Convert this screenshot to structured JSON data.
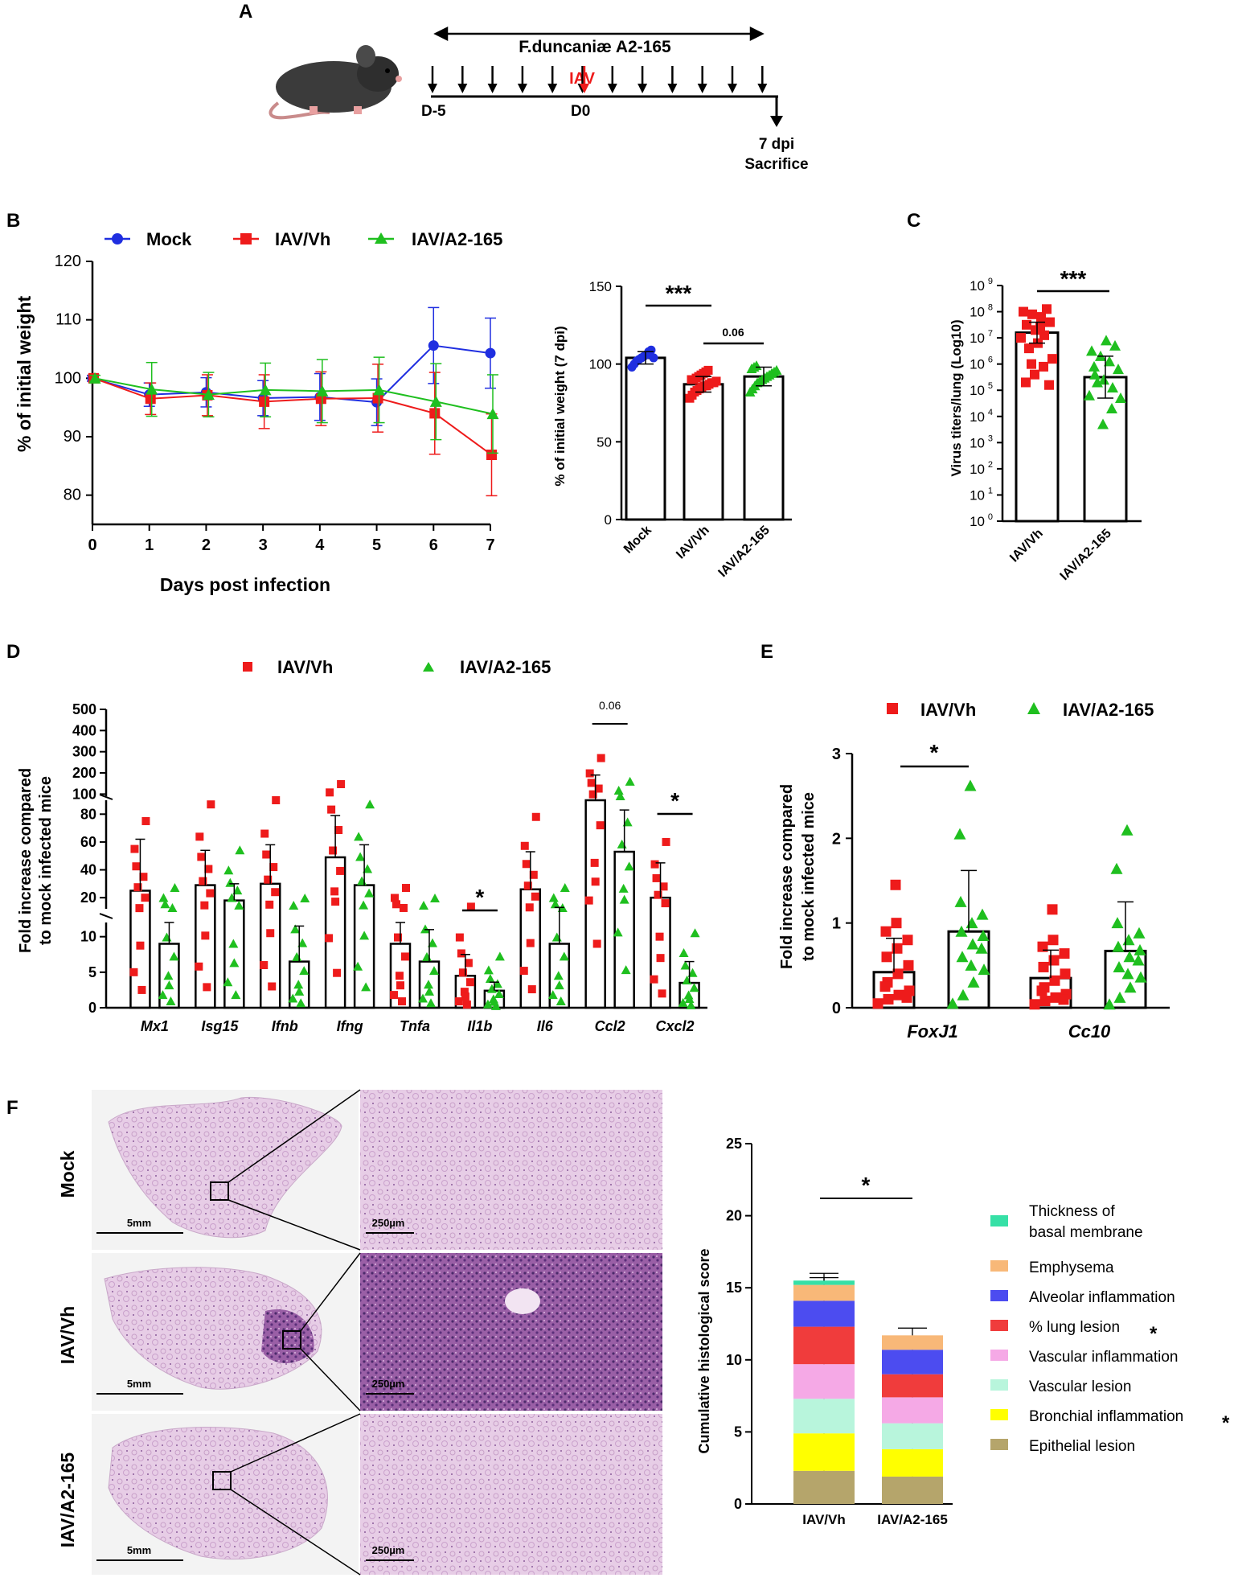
{
  "panels": {
    "A": "A",
    "B": "B",
    "C": "C",
    "D": "D",
    "E": "E",
    "F": "F"
  },
  "colors": {
    "mock": "#1f2ee0",
    "vh": "#ee1b1b",
    "a2": "#1fbf1f"
  },
  "timeline": {
    "treatment": "F.duncaniæ A2-165",
    "infection": "IAV",
    "start": "D-5",
    "zero": "D0",
    "end1": "7 dpi",
    "end2": "Sacrifice"
  },
  "legend_main": {
    "mock": "Mock",
    "vh": "IAV/Vh",
    "a2": "IAV/A2-165"
  },
  "chart_data": [
    {
      "id": "B_weight_curve",
      "type": "line",
      "xlabel": "Days post infection",
      "ylabel": "% of initial weight",
      "x": [
        0,
        1,
        2,
        3,
        4,
        5,
        6,
        7
      ],
      "xticks": [
        "0",
        "1",
        "2",
        "3",
        "4",
        "5",
        "6",
        "7"
      ],
      "ylim": [
        75,
        120
      ],
      "yticks": [
        "80",
        "90",
        "100",
        "110",
        "120"
      ],
      "series": [
        {
          "name": "Mock",
          "values": [
            100,
            97.2,
            97.6,
            96.6,
            96.8,
            95.9,
            105.6,
            104.3
          ],
          "err": [
            0.5,
            2.0,
            2.5,
            3.0,
            4.0,
            4.0,
            6.5,
            6.0
          ]
        },
        {
          "name": "IAV/Vh",
          "values": [
            100,
            96.5,
            97.1,
            96.0,
            96.5,
            96.6,
            94.0,
            86.9
          ],
          "err": [
            0.6,
            2.7,
            3.5,
            4.6,
            4.6,
            5.8,
            7.0,
            7.0
          ]
        },
        {
          "name": "IAV/A2-165",
          "values": [
            100,
            98.1,
            97.2,
            98.0,
            97.8,
            98.0,
            96.0,
            93.9
          ],
          "err": [
            0.5,
            4.6,
            3.8,
            4.6,
            5.4,
            5.6,
            6.5,
            6.7
          ]
        }
      ]
    },
    {
      "id": "B_weight_7dpi",
      "type": "bar",
      "ylabel": "% of initial weight (7 dpi)",
      "categories": [
        "Mock",
        "IAV/Vh",
        "IAV/A2-165"
      ],
      "values": [
        104,
        87,
        92
      ],
      "err": [
        4,
        5,
        6
      ],
      "ylim": [
        0,
        150
      ],
      "yticks": [
        "0",
        "50",
        "100",
        "150"
      ],
      "points": [
        [
          98,
          100,
          102,
          103,
          104,
          105,
          106,
          108,
          109,
          104
        ],
        [
          78,
          80,
          82,
          83,
          84,
          85,
          86,
          86,
          87,
          88,
          88,
          89,
          90,
          90,
          91,
          92,
          93,
          94,
          95,
          96
        ],
        [
          82,
          84,
          86,
          88,
          89,
          90,
          91,
          92,
          93,
          94,
          95,
          96,
          97,
          98,
          99
        ]
      ],
      "annotations": [
        "***",
        "0.06"
      ]
    },
    {
      "id": "C_virus_titers",
      "type": "bar",
      "ylabel": "Virus titers/lung (Log10)",
      "categories": [
        "IAV/Vh",
        "IAV/A2-165"
      ],
      "log_values": [
        7.2,
        5.5
      ],
      "log_err": [
        0.4,
        0.8
      ],
      "ylim_log": [
        0,
        9
      ],
      "yticks": [
        "10",
        "10",
        "10",
        "10",
        "10",
        "10",
        "10",
        "10",
        "10",
        "10"
      ],
      "yticks_exp": [
        "0",
        "1",
        "2",
        "3",
        "4",
        "5",
        "6",
        "7",
        "8",
        "9"
      ],
      "points": [
        [
          7.0,
          7.1,
          7.3,
          7.5,
          7.6,
          7.8,
          7.9,
          8.0,
          8.1,
          6.8,
          6.6,
          6.2,
          5.9,
          5.6,
          5.3,
          5.2,
          7.4,
          6.0
        ],
        [
          4.8,
          5.1,
          5.4,
          5.6,
          5.8,
          6.1,
          6.3,
          6.5,
          6.7,
          6.9,
          5.3,
          4.7,
          4.3,
          3.7,
          5.9
        ]
      ],
      "annotations": [
        "***"
      ]
    },
    {
      "id": "D_cytokines",
      "type": "bar",
      "ylabel": "Fold increase compared to mock infected mice",
      "categories": [
        "Mx1",
        "Isg15",
        "Ifnb",
        "Ifng",
        "Tnfa",
        "Il1b",
        "Il6",
        "Ccl2",
        "Cxcl2"
      ],
      "yticks_low": [
        "0",
        "5",
        "10"
      ],
      "yticks_mid": [
        "20",
        "40",
        "60",
        "80"
      ],
      "yticks_high": [
        "100",
        "200",
        "300",
        "400",
        "500"
      ],
      "series": [
        {
          "name": "IAV/Vh",
          "values": [
            25,
            29,
            30,
            49,
            9,
            4.5,
            26,
            90,
            20
          ],
          "err": [
            37,
            25,
            28,
            30,
            3,
            3,
            27,
            100,
            25
          ]
        },
        {
          "name": "IAV/A2-165",
          "values": [
            9,
            18,
            6.5,
            29,
            6.5,
            2.4,
            9,
            53,
            3.5
          ],
          "err": [
            3,
            12,
            5,
            29,
            4.5,
            1.2,
            4,
            30,
            3
          ]
        }
      ],
      "annotations": [
        "0.06",
        "*",
        "*"
      ]
    },
    {
      "id": "E_markers",
      "type": "bar",
      "ylabel": "Fold increase compared to mock infected mice",
      "categories": [
        "FoxJ1",
        "Cc10"
      ],
      "series": [
        {
          "name": "IAV/Vh",
          "values": [
            0.42,
            0.35
          ],
          "err": [
            0.4,
            0.33
          ]
        },
        {
          "name": "IAV/A2-165",
          "values": [
            0.9,
            0.67
          ],
          "err": [
            0.72,
            0.58
          ]
        }
      ],
      "ylim": [
        0,
        3
      ],
      "yticks": [
        "0",
        "1",
        "2",
        "3"
      ],
      "annotations": [
        "*"
      ]
    },
    {
      "id": "F_histology",
      "type": "bar",
      "stacked": true,
      "ylabel": "Cumulative histological score",
      "categories": [
        "IAV/Vh",
        "IAV/A2-165"
      ],
      "ylim": [
        0,
        25
      ],
      "yticks": [
        "0",
        "5",
        "10",
        "15",
        "20",
        "25"
      ],
      "series": [
        {
          "name": "Epithelial lesion",
          "color": "#b5a56b",
          "values": [
            2.3,
            1.9
          ]
        },
        {
          "name": "Bronchial inflammation",
          "color": "#ffff00",
          "values": [
            2.6,
            1.9
          ],
          "star": "*"
        },
        {
          "name": "Vascular lesion",
          "color": "#b8f5dc",
          "values": [
            2.4,
            1.8
          ]
        },
        {
          "name": "Vascular inflammation",
          "color": "#f5a9e6",
          "values": [
            2.4,
            1.8
          ]
        },
        {
          "name": "% lung lesion",
          "color": "#f03c3c",
          "values": [
            2.6,
            1.6
          ],
          "star": "*"
        },
        {
          "name": "Alveolar inflammation",
          "color": "#4c4cf0",
          "values": [
            1.8,
            1.7
          ]
        },
        {
          "name": "Emphysema",
          "color": "#f8b878",
          "values": [
            1.1,
            1.0
          ]
        },
        {
          "name": "Thickness of basal membrane",
          "color": "#36e0a6",
          "values": [
            0.3,
            0.0
          ]
        }
      ],
      "legend_order": [
        "Thickness of",
        "basal membrane",
        "Emphysema",
        "Alveolar inflammation",
        "% lung lesion",
        "Vascular inflammation",
        "Vascular lesion",
        "Bronchial inflammation",
        "Epithelial lesion"
      ],
      "annotations": [
        "*"
      ]
    }
  ],
  "histology": {
    "rows": [
      "Mock",
      "IAV/Vh",
      "IAV/A2-165"
    ],
    "scale_low": "5mm",
    "scale_high": "250µm"
  }
}
